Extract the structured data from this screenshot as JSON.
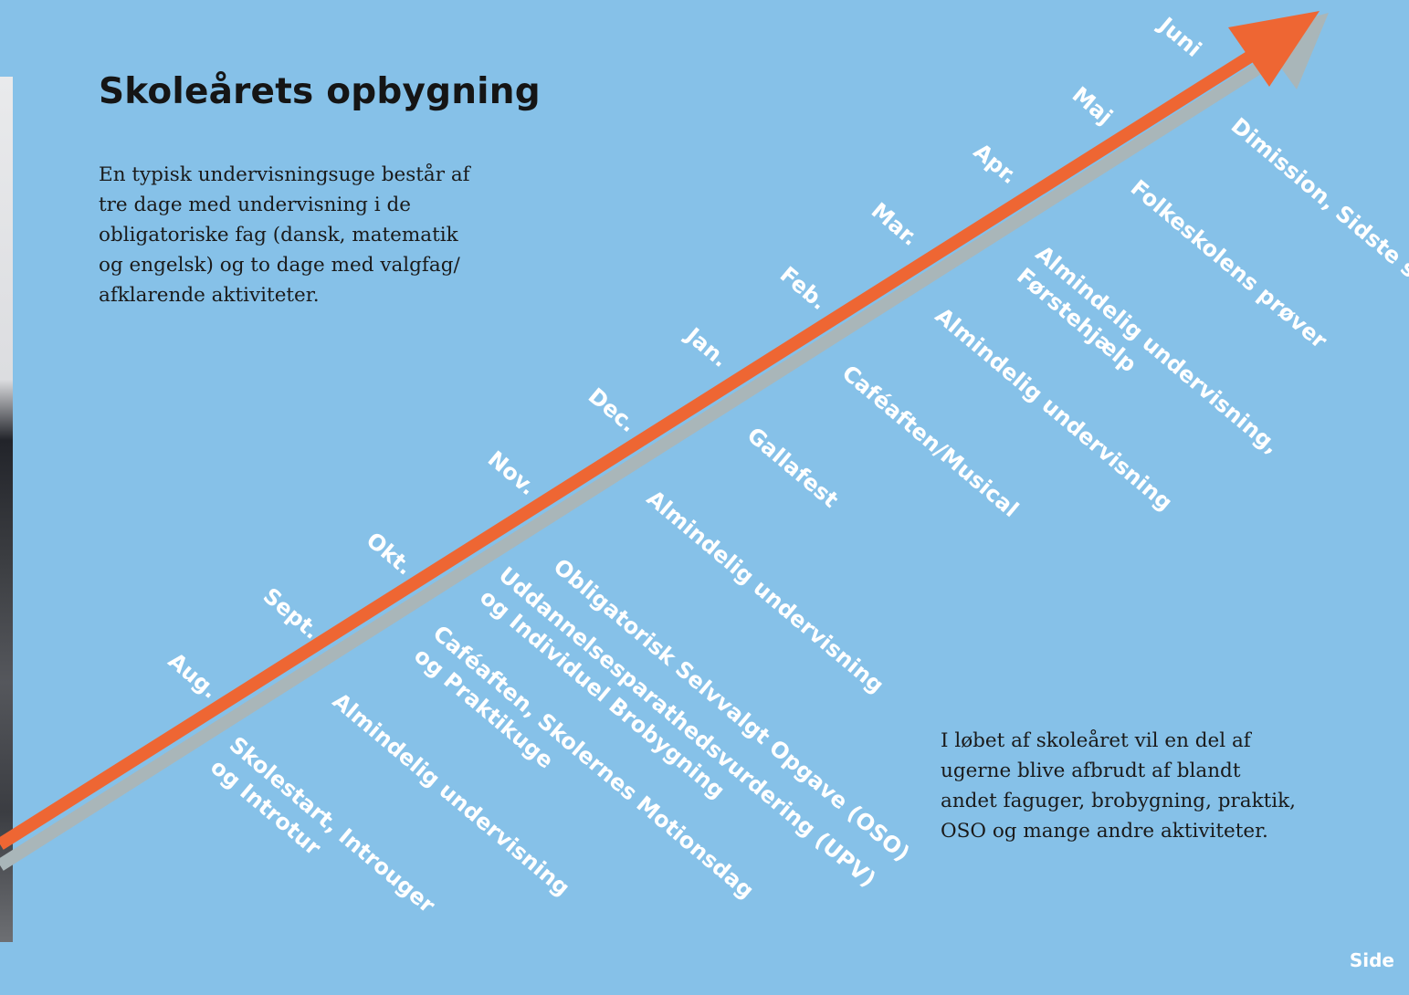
{
  "title": "Skoleårets opbygning",
  "intro": "En typisk undervisningsuge består af\ntre dage med undervisning i de\nobligatoriske fag (dansk, matematik\nog engelsk) og to dage med valgfag/\nafklarende aktiviteter.",
  "outro": "I løbet af skoleåret vil en del af\nugerne blive afbrudt af blandt\nandet faguger, brobygning, praktik,\nOSO og mange andre aktiviteter.",
  "months": [
    "Aug.",
    "Sept.",
    "Okt.",
    "Nov.",
    "Dec.",
    "Jan.",
    "Feb.",
    "Mar.",
    "Apr.",
    "Maj",
    "Juni"
  ],
  "events": [
    "Skolestart, Introuger\nog Introtur",
    "Almindelig undervisning",
    "Caféaften, Skolernes Motionsdag\nog Praktikuge",
    "Uddannelsesparathedsvurdering (UPV)\nog Individuel Brobygning",
    "Obligatorisk Selvvalgt Opgave (OSO)",
    "Almindelig undervisning",
    "Gallafest",
    "Caféaften/Musical",
    "Almindelig undervisning",
    "Almindelig undervisning,\nFørstehjælp",
    "Folkeskolens prøver",
    "Dimission, Sidste skoledag"
  ],
  "page_label": "Side",
  "colors": {
    "background": "#86c1e8",
    "arrow": "#ee6633",
    "arrow_shadow": "#a9b6b9",
    "label_text": "#ffffff",
    "title_text": "#151515"
  }
}
